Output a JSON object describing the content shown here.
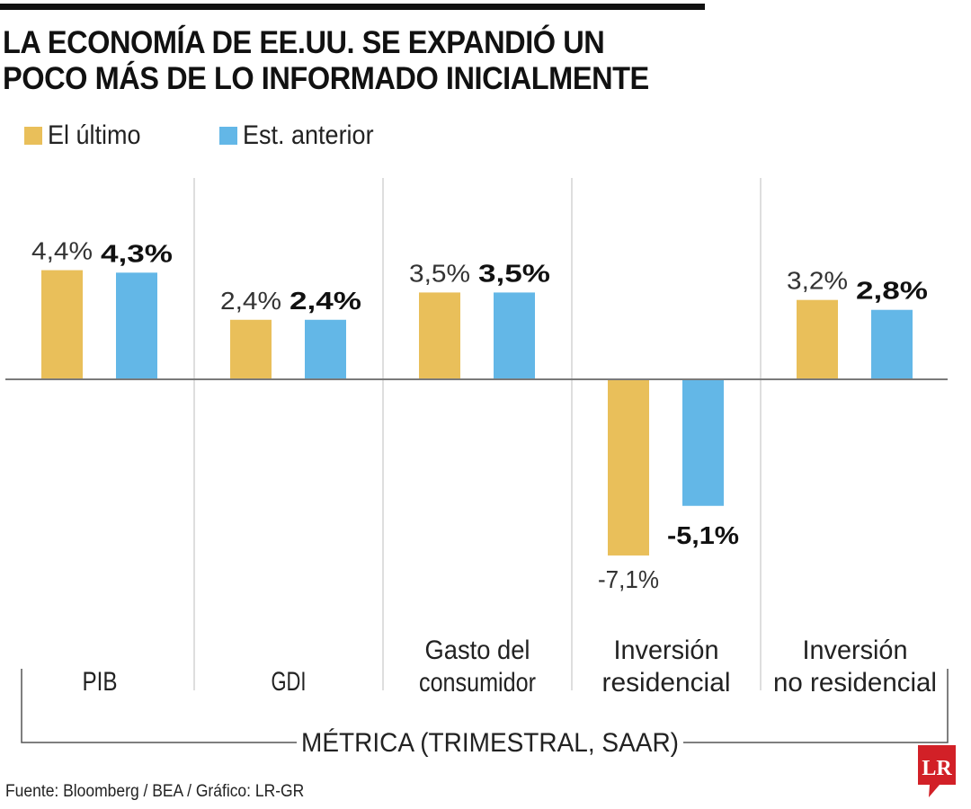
{
  "header": {
    "title_line1": "LA ECONOMÍA DE EE.UU. SE EXPANDIÓ UN",
    "title_line2": "POCO MÁS DE LO INFORMADO INICIALMENTE"
  },
  "footer": {
    "source": "Fuente: Bloomberg / BEA / Gráfico: LR-GR",
    "logo_text": "LR",
    "logo_color": "#d22027"
  },
  "chart_data": {
    "type": "bar",
    "title": "LA ECONOMÍA DE EE.UU. SE EXPANDIÓ UN POCO MÁS DE LO INFORMADO INICIALMENTE",
    "xlabel": "MÉTRICA (TRIMESTRAL, SAAR)",
    "ylabel": "",
    "grid": false,
    "legend_position": "top-left",
    "categories": [
      [
        "PIB"
      ],
      [
        "GDI"
      ],
      [
        "Gasto del",
        "consumidor"
      ],
      [
        "Inversión",
        "residencial"
      ],
      [
        "Inversión",
        "no residencial"
      ]
    ],
    "series": [
      {
        "name": "El último",
        "color": "#e9bf5a",
        "values": [
          4.4,
          2.4,
          3.5,
          -7.1,
          3.2
        ],
        "labels": [
          "4,4%",
          "2,4%",
          "3,5%",
          "-7,1%",
          "3,2%"
        ],
        "label_weight": "normal"
      },
      {
        "name": "Est. anterior",
        "color": "#63b7e7",
        "values": [
          4.3,
          2.4,
          3.5,
          -5.1,
          2.8
        ],
        "labels": [
          "4,3%",
          "2,4%",
          "3,5%",
          "-5,1%",
          "2,8%"
        ],
        "label_weight": "bold"
      }
    ],
    "ylim": [
      -7.1,
      4.4
    ]
  }
}
